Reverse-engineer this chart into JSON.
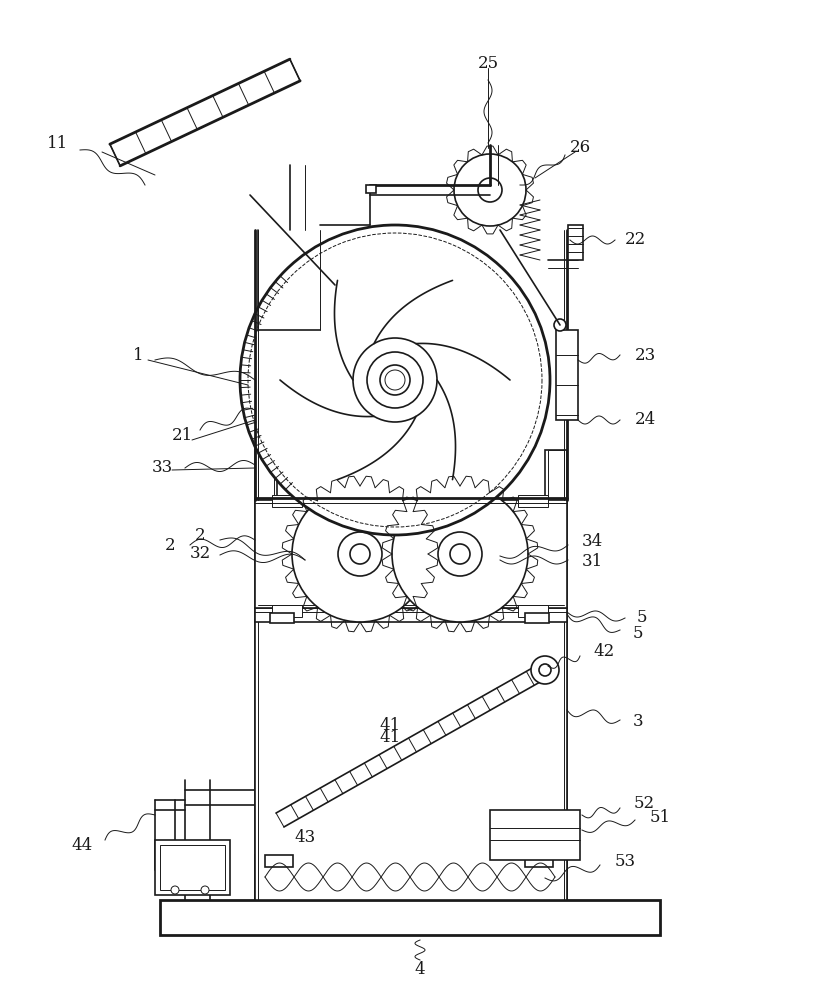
{
  "bg_color": "#ffffff",
  "line_color": "#1a1a1a",
  "fig_width": 8.19,
  "fig_height": 10.0,
  "lw": 1.2,
  "lw_thin": 0.7,
  "lw_thick": 2.0,
  "label_fs": 12
}
